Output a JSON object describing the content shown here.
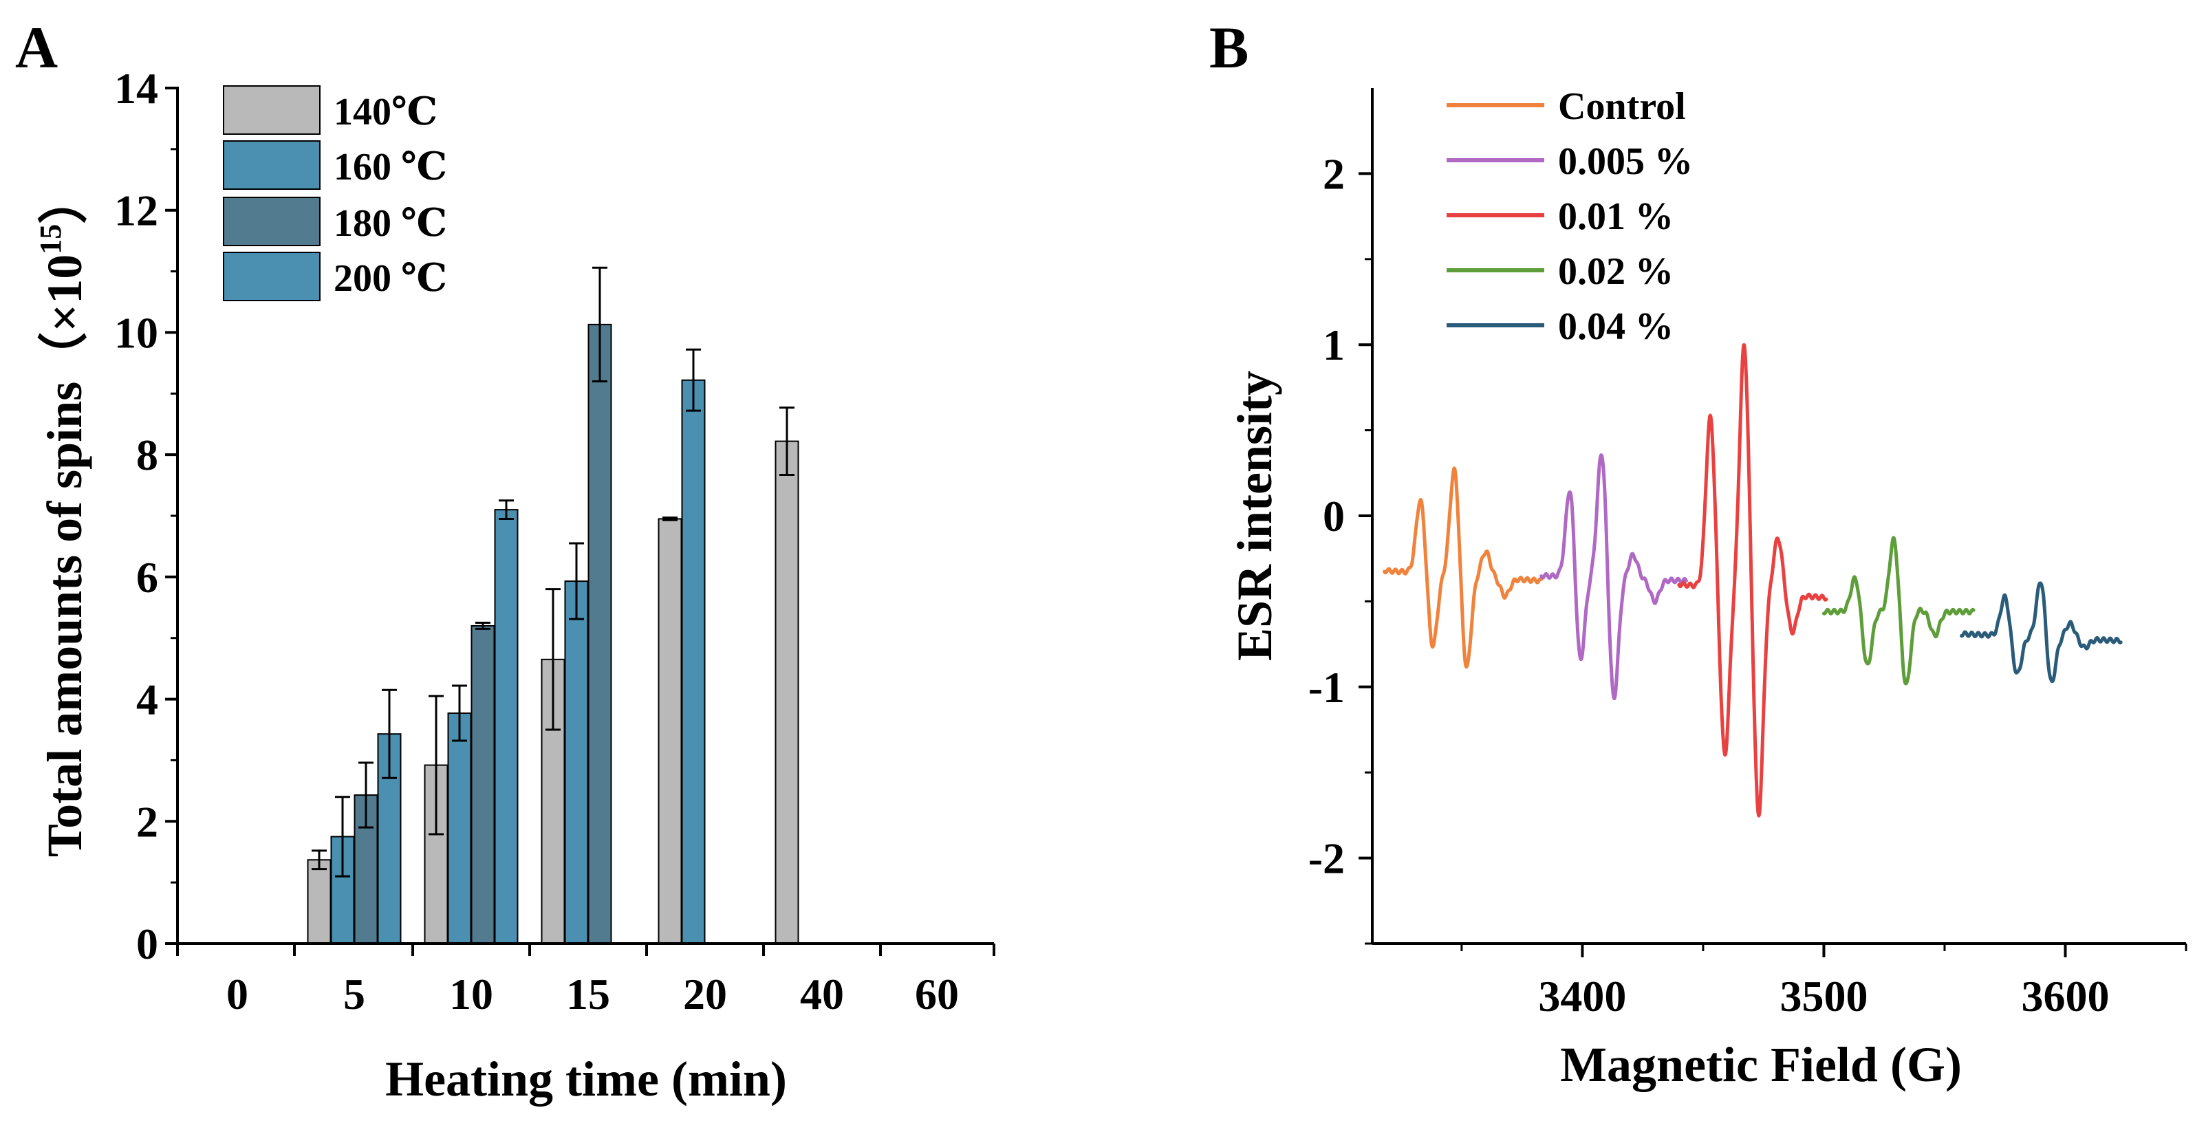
{
  "chart_data": [
    {
      "panel": "A",
      "type": "bar",
      "xlabel": "Heating time (min)",
      "ylabel": "Total amounts of spins（×10",
      "ylabel_superscript": "15",
      "ylabel_suffix": "）",
      "ylim": [
        0,
        14
      ],
      "yticks": [
        "0",
        "2",
        "4",
        "6",
        "8",
        "10",
        "12",
        "14"
      ],
      "categories": [
        "0",
        "5",
        "10",
        "15",
        "20",
        "40",
        "60"
      ],
      "legend_position": "top-left",
      "series": [
        {
          "name": "140℃",
          "color": "#b9b9b9",
          "values": [
            null,
            1.37,
            2.92,
            4.65,
            6.95,
            8.22,
            null
          ],
          "errors": [
            null,
            0.15,
            1.13,
            1.15,
            0.02,
            0.55,
            null
          ]
        },
        {
          "name": "160 ℃",
          "color": "#4b8fb1",
          "values": [
            null,
            1.75,
            3.77,
            5.93,
            9.22,
            null,
            null
          ],
          "errors": [
            null,
            0.65,
            0.45,
            0.62,
            0.5,
            null,
            null
          ]
        },
        {
          "name": "180 ℃",
          "color": "#527b90",
          "values": [
            null,
            2.43,
            5.2,
            10.13,
            null,
            null,
            null
          ],
          "errors": [
            null,
            0.53,
            0.05,
            0.93,
            null,
            null,
            null
          ]
        },
        {
          "name": "200 ℃",
          "color": "#4b8fb1",
          "values": [
            null,
            3.43,
            7.1,
            null,
            null,
            null,
            null
          ],
          "errors": [
            null,
            0.72,
            0.15,
            null,
            null,
            null,
            null
          ]
        }
      ]
    },
    {
      "panel": "B",
      "type": "line",
      "xlabel": "Magnetic Field (G)",
      "ylabel": "ESR intensity",
      "xlim": [
        3313,
        3650
      ],
      "ylim": [
        -2.5,
        2.5
      ],
      "xticks": [
        "3400",
        "3500",
        "3600"
      ],
      "yticks": [
        "-2",
        "-1",
        "0",
        "1",
        "2"
      ],
      "legend_position": "top-left",
      "series": [
        {
          "name": "Control",
          "color": "#f0823c",
          "x_range": [
            3318,
            3383
          ],
          "baseline_start": -0.32,
          "baseline_end": -0.38,
          "peaks": [
            {
              "x": 3333,
              "y": 0.1
            },
            {
              "x": 3338,
              "y": -0.77
            },
            {
              "x": 3347,
              "y": 0.28
            },
            {
              "x": 3352,
              "y": -0.9
            },
            {
              "x": 3360,
              "y": -0.21
            },
            {
              "x": 3368,
              "y": -0.47
            }
          ]
        },
        {
          "name": "0.005 %",
          "color": "#b068c5",
          "x_range": [
            3383,
            3443
          ],
          "baseline_start": -0.35,
          "baseline_end": -0.38,
          "peaks": [
            {
              "x": 3395,
              "y": 0.19
            },
            {
              "x": 3399,
              "y": -0.88
            },
            {
              "x": 3408,
              "y": 0.38
            },
            {
              "x": 3413,
              "y": -1.08
            },
            {
              "x": 3421,
              "y": -0.23
            },
            {
              "x": 3430,
              "y": -0.5
            }
          ]
        },
        {
          "name": "0.01 %",
          "color": "#e8413f",
          "x_range": [
            3440,
            3501
          ],
          "baseline_start": -0.4,
          "baseline_end": -0.48,
          "peaks": [
            {
              "x": 3453,
              "y": 0.58
            },
            {
              "x": 3459,
              "y": -1.4
            },
            {
              "x": 3467,
              "y": 1.0
            },
            {
              "x": 3473,
              "y": -1.75
            },
            {
              "x": 3481,
              "y": -0.13
            },
            {
              "x": 3487,
              "y": -0.68
            }
          ]
        },
        {
          "name": "0.02 %",
          "color": "#5d9e3a",
          "x_range": [
            3500,
            3562
          ],
          "baseline_start": -0.56,
          "baseline_end": -0.56,
          "peaks": [
            {
              "x": 3513,
              "y": -0.36
            },
            {
              "x": 3518,
              "y": -0.88
            },
            {
              "x": 3529,
              "y": -0.13
            },
            {
              "x": 3534,
              "y": -1.0
            },
            {
              "x": 3540,
              "y": -0.55
            },
            {
              "x": 3546,
              "y": -0.7
            }
          ]
        },
        {
          "name": "0.04 %",
          "color": "#2a5c7a",
          "x_range": [
            3557,
            3623
          ],
          "baseline_start": -0.69,
          "baseline_end": -0.73,
          "peaks": [
            {
              "x": 3575,
              "y": -0.47
            },
            {
              "x": 3580,
              "y": -0.93
            },
            {
              "x": 3590,
              "y": -0.36
            },
            {
              "x": 3594,
              "y": -1.0
            },
            {
              "x": 3602,
              "y": -0.63
            },
            {
              "x": 3608,
              "y": -0.77
            }
          ]
        }
      ]
    }
  ],
  "panel_labels": {
    "a": "A",
    "b": "B"
  }
}
